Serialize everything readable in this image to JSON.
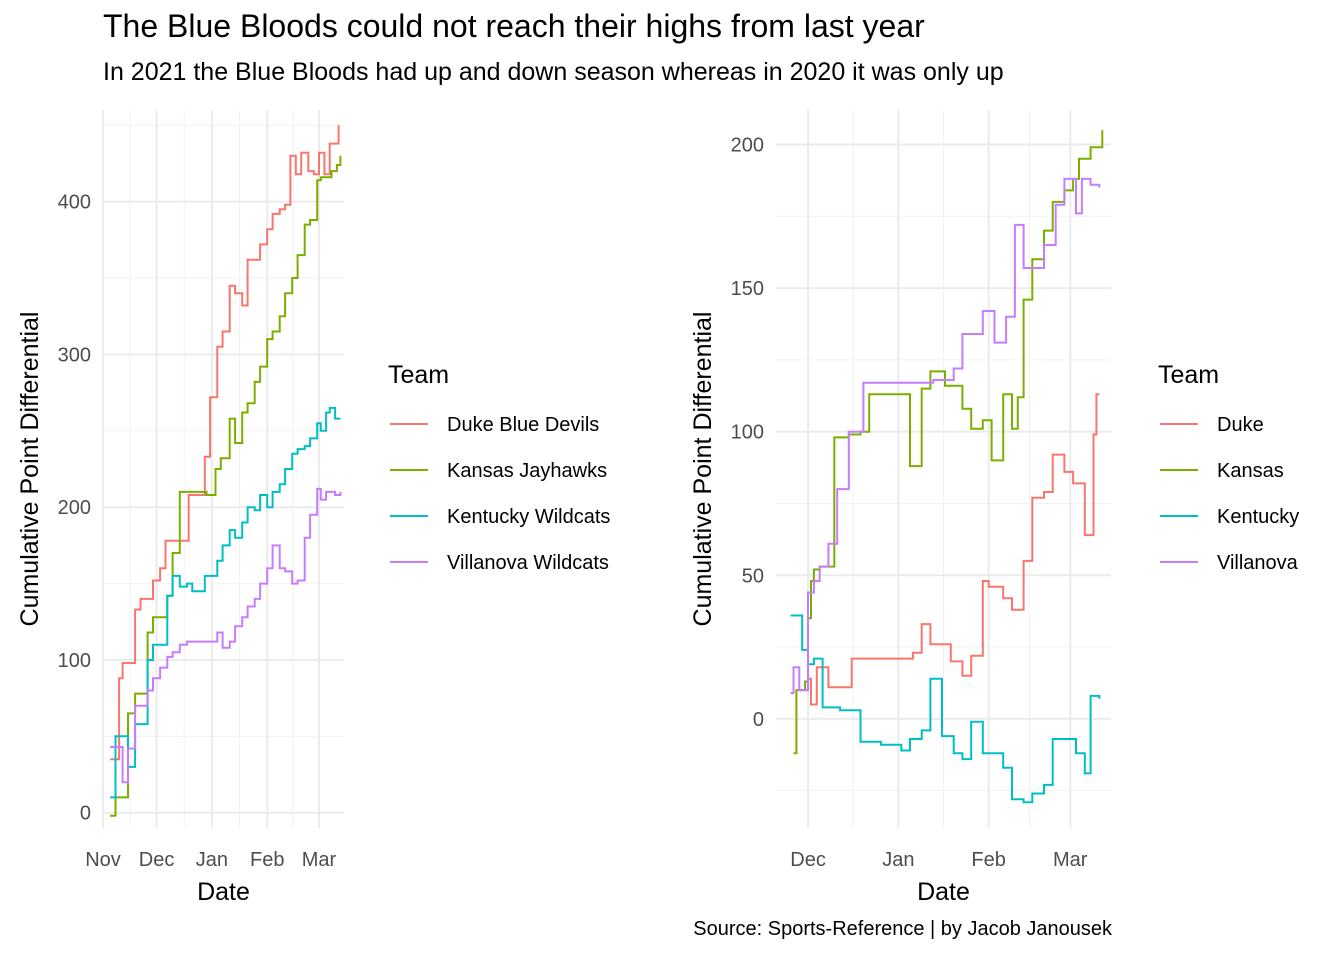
{
  "title": "The Blue Bloods could not reach their highs from last year",
  "subtitle": "In 2021 the Blue Bloods had up and down season whereas in 2020 it was only up",
  "caption": "Source: Sports-Reference | by Jacob Janousek",
  "chart_data": [
    {
      "type": "line",
      "step": true,
      "xlabel": "Date",
      "ylabel": "Cumulative Point Differential",
      "x_ticks": [
        "Nov",
        "Dec",
        "Jan",
        "Feb",
        "Mar"
      ],
      "x_tick_dates": [
        "2019-11-01",
        "2019-12-01",
        "2020-01-01",
        "2020-02-01",
        "2020-03-01"
      ],
      "xlim": [
        "2019-11-01",
        "2020-03-15"
      ],
      "ylim": [
        -10,
        460
      ],
      "y_ticks": [
        0,
        100,
        200,
        300,
        400
      ],
      "grid": true,
      "legend_title": "Team",
      "legend_position": "right",
      "series": [
        {
          "name": "Duke Blue Devils",
          "color": "#F8766D",
          "x": [
            "2019-11-05",
            "2019-11-08",
            "2019-11-10",
            "2019-11-12",
            "2019-11-15",
            "2019-11-19",
            "2019-11-22",
            "2019-11-26",
            "2019-11-29",
            "2019-12-03",
            "2019-12-06",
            "2019-12-10",
            "2019-12-14",
            "2019-12-19",
            "2019-12-28",
            "2019-12-31",
            "2020-01-04",
            "2020-01-07",
            "2020-01-11",
            "2020-01-14",
            "2020-01-18",
            "2020-01-21",
            "2020-01-25",
            "2020-01-28",
            "2020-02-01",
            "2020-02-04",
            "2020-02-08",
            "2020-02-11",
            "2020-02-14",
            "2020-02-17",
            "2020-02-20",
            "2020-02-24",
            "2020-02-27",
            "2020-03-01",
            "2020-03-04",
            "2020-03-07",
            "2020-03-10",
            "2020-03-12"
          ],
          "y": [
            35,
            35,
            88,
            98,
            98,
            133,
            140,
            140,
            152,
            160,
            178,
            178,
            178,
            208,
            233,
            272,
            305,
            315,
            345,
            340,
            332,
            362,
            362,
            372,
            382,
            392,
            395,
            398,
            430,
            418,
            432,
            420,
            418,
            432,
            418,
            438,
            438,
            450
          ]
        },
        {
          "name": "Kansas Jayhawks",
          "color": "#7CAE00",
          "x": [
            "2019-11-05",
            "2019-11-08",
            "2019-11-12",
            "2019-11-15",
            "2019-11-19",
            "2019-11-22",
            "2019-11-26",
            "2019-11-29",
            "2019-12-03",
            "2019-12-07",
            "2019-12-10",
            "2019-12-14",
            "2019-12-18",
            "2019-12-21",
            "2019-12-29",
            "2020-01-03",
            "2020-01-06",
            "2020-01-11",
            "2020-01-14",
            "2020-01-18",
            "2020-01-21",
            "2020-01-25",
            "2020-01-28",
            "2020-02-01",
            "2020-02-04",
            "2020-02-08",
            "2020-02-11",
            "2020-02-15",
            "2020-02-18",
            "2020-02-22",
            "2020-02-25",
            "2020-02-29",
            "2020-03-02",
            "2020-03-05",
            "2020-03-08",
            "2020-03-11",
            "2020-03-13"
          ],
          "y": [
            -2,
            10,
            10,
            65,
            78,
            78,
            118,
            128,
            128,
            142,
            170,
            210,
            210,
            210,
            208,
            225,
            232,
            258,
            242,
            262,
            268,
            282,
            292,
            310,
            315,
            325,
            340,
            350,
            365,
            385,
            388,
            414,
            416,
            416,
            420,
            424,
            430
          ]
        },
        {
          "name": "Kentucky Wildcats",
          "color": "#00BFC4",
          "x": [
            "2019-11-05",
            "2019-11-08",
            "2019-11-12",
            "2019-11-15",
            "2019-11-19",
            "2019-11-22",
            "2019-11-26",
            "2019-11-29",
            "2019-12-03",
            "2019-12-07",
            "2019-12-10",
            "2019-12-14",
            "2019-12-18",
            "2019-12-21",
            "2019-12-28",
            "2020-01-04",
            "2020-01-07",
            "2020-01-11",
            "2020-01-14",
            "2020-01-18",
            "2020-01-21",
            "2020-01-25",
            "2020-01-28",
            "2020-02-01",
            "2020-02-04",
            "2020-02-08",
            "2020-02-11",
            "2020-02-15",
            "2020-02-18",
            "2020-02-22",
            "2020-02-25",
            "2020-02-29",
            "2020-03-02",
            "2020-03-05",
            "2020-03-07",
            "2020-03-10",
            "2020-03-13"
          ],
          "y": [
            10,
            50,
            50,
            30,
            58,
            58,
            100,
            110,
            110,
            142,
            155,
            148,
            150,
            145,
            155,
            165,
            175,
            185,
            180,
            190,
            200,
            198,
            208,
            200,
            210,
            215,
            225,
            235,
            238,
            240,
            245,
            255,
            250,
            262,
            265,
            258,
            258
          ]
        },
        {
          "name": "Villanova Wildcats",
          "color": "#C77CFF",
          "x": [
            "2019-11-05",
            "2019-11-08",
            "2019-11-12",
            "2019-11-15",
            "2019-11-19",
            "2019-11-22",
            "2019-11-26",
            "2019-11-29",
            "2019-12-03",
            "2019-12-07",
            "2019-12-10",
            "2019-12-14",
            "2019-12-18",
            "2019-12-21",
            "2019-12-28",
            "2020-01-04",
            "2020-01-07",
            "2020-01-11",
            "2020-01-14",
            "2020-01-18",
            "2020-01-21",
            "2020-01-25",
            "2020-01-28",
            "2020-02-01",
            "2020-02-04",
            "2020-02-08",
            "2020-02-11",
            "2020-02-15",
            "2020-02-18",
            "2020-02-22",
            "2020-02-25",
            "2020-02-29",
            "2020-03-02",
            "2020-03-05",
            "2020-03-07",
            "2020-03-10",
            "2020-03-13"
          ],
          "y": [
            43,
            43,
            20,
            42,
            70,
            70,
            80,
            88,
            95,
            102,
            105,
            110,
            112,
            112,
            112,
            118,
            108,
            112,
            122,
            128,
            135,
            140,
            150,
            160,
            175,
            160,
            158,
            150,
            152,
            180,
            195,
            212,
            205,
            210,
            210,
            208,
            210
          ]
        }
      ]
    },
    {
      "type": "line",
      "step": true,
      "xlabel": "Date",
      "ylabel": "Cumulative Point Differential",
      "x_ticks": [
        "Dec",
        "Jan",
        "Feb",
        "Mar"
      ],
      "x_tick_dates": [
        "2020-12-01",
        "2021-01-01",
        "2021-02-01",
        "2021-03-01"
      ],
      "xlim": [
        "2020-11-20",
        "2021-03-15"
      ],
      "ylim": [
        -38,
        212
      ],
      "y_ticks": [
        0,
        50,
        100,
        150,
        200
      ],
      "grid": true,
      "legend_title": "Team",
      "legend_position": "right",
      "series": [
        {
          "name": "Duke",
          "color": "#F8766D",
          "x": [
            "2020-11-28",
            "2020-12-01",
            "2020-12-02",
            "2020-12-04",
            "2020-12-08",
            "2020-12-16",
            "2021-01-06",
            "2021-01-09",
            "2021-01-12",
            "2021-01-19",
            "2021-01-23",
            "2021-01-26",
            "2021-01-30",
            "2021-02-01",
            "2021-02-06",
            "2021-02-09",
            "2021-02-13",
            "2021-02-16",
            "2021-02-20",
            "2021-02-23",
            "2021-02-27",
            "2021-03-02",
            "2021-03-06",
            "2021-03-09",
            "2021-03-10",
            "2021-03-11"
          ],
          "y": [
            10,
            14,
            5,
            18,
            11,
            21,
            23,
            33,
            26,
            20,
            15,
            22,
            48,
            46,
            42,
            38,
            55,
            77,
            79,
            92,
            86,
            82,
            64,
            99,
            113,
            113
          ]
        },
        {
          "name": "Kansas",
          "color": "#7CAE00",
          "x": [
            "2020-11-26",
            "2020-11-27",
            "2020-11-30",
            "2020-12-01",
            "2020-12-02",
            "2020-12-03",
            "2020-12-05",
            "2020-12-10",
            "2020-12-15",
            "2020-12-19",
            "2020-12-22",
            "2021-01-02",
            "2021-01-05",
            "2021-01-09",
            "2021-01-12",
            "2021-01-17",
            "2021-01-23",
            "2021-01-26",
            "2021-01-30",
            "2021-02-02",
            "2021-02-06",
            "2021-02-09",
            "2021-02-11",
            "2021-02-13",
            "2021-02-16",
            "2021-02-20",
            "2021-02-23",
            "2021-02-27",
            "2021-03-02",
            "2021-03-04",
            "2021-03-08",
            "2021-03-11",
            "2021-03-12"
          ],
          "y": [
            -12,
            10,
            13,
            35,
            48,
            52,
            53,
            98,
            99,
            100,
            113,
            113,
            88,
            115,
            121,
            116,
            108,
            101,
            104,
            90,
            113,
            101,
            112,
            146,
            160,
            170,
            180,
            184,
            188,
            195,
            199,
            199,
            205
          ]
        },
        {
          "name": "Kentucky",
          "color": "#00BFC4",
          "x": [
            "2020-11-25",
            "2020-11-29",
            "2020-12-01",
            "2020-12-03",
            "2020-12-06",
            "2020-12-12",
            "2020-12-19",
            "2020-12-26",
            "2021-01-02",
            "2021-01-05",
            "2021-01-09",
            "2021-01-12",
            "2021-01-16",
            "2021-01-20",
            "2021-01-23",
            "2021-01-26",
            "2021-01-30",
            "2021-02-02",
            "2021-02-06",
            "2021-02-09",
            "2021-02-13",
            "2021-02-16",
            "2021-02-20",
            "2021-02-23",
            "2021-02-27",
            "2021-03-03",
            "2021-03-06",
            "2021-03-08",
            "2021-03-10",
            "2021-03-11"
          ],
          "y": [
            36,
            24,
            19,
            21,
            4,
            3,
            -8,
            -9,
            -11,
            -7,
            -4,
            14,
            -6,
            -12,
            -14,
            -1,
            -12,
            -12,
            -17,
            -28,
            -29,
            -26,
            -23,
            -7,
            -7,
            -12,
            -19,
            8,
            8,
            7
          ]
        },
        {
          "name": "Villanova",
          "color": "#C77CFF",
          "x": [
            "2020-11-25",
            "2020-11-26",
            "2020-11-28",
            "2020-12-01",
            "2020-12-03",
            "2020-12-05",
            "2020-12-08",
            "2020-12-11",
            "2020-12-15",
            "2020-12-20",
            "2021-01-02",
            "2021-01-09",
            "2021-01-13",
            "2021-01-20",
            "2021-01-23",
            "2021-01-30",
            "2021-02-03",
            "2021-02-07",
            "2021-02-10",
            "2021-02-13",
            "2021-02-17",
            "2021-02-20",
            "2021-02-24",
            "2021-02-27",
            "2021-03-03",
            "2021-03-05",
            "2021-03-08",
            "2021-03-11"
          ],
          "y": [
            9,
            18,
            10,
            44,
            48,
            53,
            61,
            80,
            100,
            117,
            117,
            117,
            118,
            122,
            134,
            142,
            131,
            140,
            172,
            157,
            157,
            165,
            179,
            188,
            176,
            188,
            186,
            185
          ]
        }
      ]
    }
  ]
}
